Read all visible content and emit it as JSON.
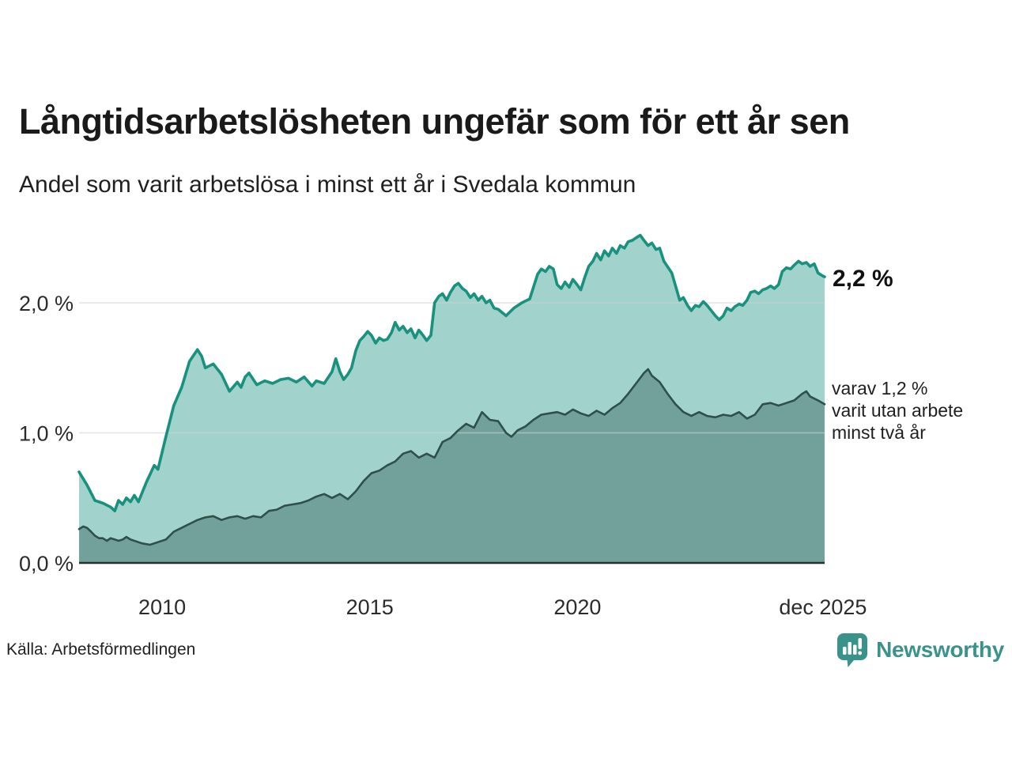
{
  "header": {
    "title": "Långtidsarbetslösheten ungefär som för ett år sen",
    "subtitle": "Andel som varit arbetslösa i minst ett år i Svedala kommun"
  },
  "annotations": {
    "total_end_label": "2,2 %",
    "secondary_line1": "varav 1,2 %",
    "secondary_line2": "varit utan arbete",
    "secondary_line3": "minst två år"
  },
  "footer": {
    "source": "Källa: Arbetsförmedlingen",
    "logo_text": "Newsworthy"
  },
  "colors": {
    "series1_line": "#18917f",
    "series1_fill": "#a1d3cc",
    "series2_line": "#2f4f4a",
    "series2_fill": "#72a09a",
    "gridline": "#d2d2d2",
    "baseline": "#26312e",
    "logo_teal": "#3a938b"
  },
  "chart_data": {
    "type": "area",
    "title": "Långtidsarbetslösheten ungefär som för ett år sen",
    "subtitle": "Andel som varit arbetslösa i minst ett år i Svedala kommun",
    "unit": "%",
    "x_range": [
      2008.0,
      2025.95
    ],
    "ylim": [
      0,
      2.6
    ],
    "grid": true,
    "yticks": [
      {
        "v": 0,
        "label": "0,0 %"
      },
      {
        "v": 1,
        "label": "1,0 %"
      },
      {
        "v": 2,
        "label": "2,0 %"
      }
    ],
    "xticks": [
      {
        "t": 2010,
        "label": "2010"
      },
      {
        "t": 2015,
        "label": "2015"
      },
      {
        "t": 2020,
        "label": "2020"
      },
      {
        "t": 2025.91,
        "label": "dec 2025"
      }
    ],
    "series": [
      {
        "name": "Andel som varit arbetslösa i minst ett år",
        "end_value": "2,2 %",
        "points": [
          [
            2008.0,
            0.7
          ],
          [
            2008.19,
            0.6
          ],
          [
            2008.38,
            0.48
          ],
          [
            2008.57,
            0.46
          ],
          [
            2008.76,
            0.43
          ],
          [
            2008.86,
            0.4
          ],
          [
            2008.95,
            0.48
          ],
          [
            2009.05,
            0.45
          ],
          [
            2009.14,
            0.5
          ],
          [
            2009.24,
            0.47
          ],
          [
            2009.33,
            0.52
          ],
          [
            2009.43,
            0.47
          ],
          [
            2009.62,
            0.62
          ],
          [
            2009.81,
            0.75
          ],
          [
            2009.9,
            0.72
          ],
          [
            2010.09,
            0.97
          ],
          [
            2010.28,
            1.21
          ],
          [
            2010.47,
            1.35
          ],
          [
            2010.66,
            1.55
          ],
          [
            2010.85,
            1.64
          ],
          [
            2010.95,
            1.59
          ],
          [
            2011.04,
            1.5
          ],
          [
            2011.23,
            1.53
          ],
          [
            2011.43,
            1.45
          ],
          [
            2011.62,
            1.32
          ],
          [
            2011.81,
            1.39
          ],
          [
            2011.9,
            1.35
          ],
          [
            2012.0,
            1.43
          ],
          [
            2012.09,
            1.46
          ],
          [
            2012.28,
            1.37
          ],
          [
            2012.47,
            1.4
          ],
          [
            2012.66,
            1.38
          ],
          [
            2012.85,
            1.41
          ],
          [
            2013.04,
            1.42
          ],
          [
            2013.23,
            1.39
          ],
          [
            2013.42,
            1.43
          ],
          [
            2013.61,
            1.36
          ],
          [
            2013.71,
            1.4
          ],
          [
            2013.9,
            1.38
          ],
          [
            2014.09,
            1.47
          ],
          [
            2014.18,
            1.57
          ],
          [
            2014.28,
            1.47
          ],
          [
            2014.37,
            1.41
          ],
          [
            2014.47,
            1.45
          ],
          [
            2014.56,
            1.5
          ],
          [
            2014.66,
            1.63
          ],
          [
            2014.76,
            1.71
          ],
          [
            2014.85,
            1.74
          ],
          [
            2014.95,
            1.78
          ],
          [
            2015.04,
            1.75
          ],
          [
            2015.14,
            1.69
          ],
          [
            2015.23,
            1.73
          ],
          [
            2015.33,
            1.71
          ],
          [
            2015.42,
            1.72
          ],
          [
            2015.52,
            1.77
          ],
          [
            2015.61,
            1.85
          ],
          [
            2015.71,
            1.79
          ],
          [
            2015.8,
            1.82
          ],
          [
            2015.9,
            1.77
          ],
          [
            2015.99,
            1.8
          ],
          [
            2016.09,
            1.73
          ],
          [
            2016.18,
            1.79
          ],
          [
            2016.28,
            1.75
          ],
          [
            2016.37,
            1.71
          ],
          [
            2016.47,
            1.75
          ],
          [
            2016.56,
            2.0
          ],
          [
            2016.66,
            2.05
          ],
          [
            2016.75,
            2.07
          ],
          [
            2016.85,
            2.02
          ],
          [
            2016.94,
            2.08
          ],
          [
            2017.04,
            2.13
          ],
          [
            2017.13,
            2.15
          ],
          [
            2017.23,
            2.11
          ],
          [
            2017.32,
            2.09
          ],
          [
            2017.42,
            2.04
          ],
          [
            2017.51,
            2.07
          ],
          [
            2017.61,
            2.02
          ],
          [
            2017.7,
            2.05
          ],
          [
            2017.8,
            2.0
          ],
          [
            2017.89,
            2.02
          ],
          [
            2017.99,
            1.96
          ],
          [
            2018.09,
            1.95
          ],
          [
            2018.28,
            1.9
          ],
          [
            2018.47,
            1.96
          ],
          [
            2018.66,
            2.0
          ],
          [
            2018.85,
            2.03
          ],
          [
            2019.04,
            2.22
          ],
          [
            2019.13,
            2.26
          ],
          [
            2019.23,
            2.24
          ],
          [
            2019.32,
            2.28
          ],
          [
            2019.42,
            2.26
          ],
          [
            2019.51,
            2.14
          ],
          [
            2019.61,
            2.11
          ],
          [
            2019.7,
            2.16
          ],
          [
            2019.8,
            2.12
          ],
          [
            2019.89,
            2.18
          ],
          [
            2019.99,
            2.14
          ],
          [
            2020.08,
            2.1
          ],
          [
            2020.18,
            2.2
          ],
          [
            2020.27,
            2.28
          ],
          [
            2020.37,
            2.32
          ],
          [
            2020.46,
            2.38
          ],
          [
            2020.56,
            2.33
          ],
          [
            2020.65,
            2.4
          ],
          [
            2020.75,
            2.36
          ],
          [
            2020.84,
            2.42
          ],
          [
            2020.94,
            2.38
          ],
          [
            2021.03,
            2.44
          ],
          [
            2021.13,
            2.42
          ],
          [
            2021.22,
            2.47
          ],
          [
            2021.32,
            2.48
          ],
          [
            2021.41,
            2.5
          ],
          [
            2021.51,
            2.52
          ],
          [
            2021.6,
            2.48
          ],
          [
            2021.7,
            2.44
          ],
          [
            2021.79,
            2.46
          ],
          [
            2021.89,
            2.41
          ],
          [
            2021.98,
            2.42
          ],
          [
            2022.08,
            2.32
          ],
          [
            2022.27,
            2.23
          ],
          [
            2022.46,
            2.02
          ],
          [
            2022.55,
            2.04
          ],
          [
            2022.65,
            1.98
          ],
          [
            2022.74,
            1.94
          ],
          [
            2022.84,
            1.98
          ],
          [
            2022.93,
            1.97
          ],
          [
            2023.03,
            2.01
          ],
          [
            2023.12,
            1.98
          ],
          [
            2023.22,
            1.94
          ],
          [
            2023.32,
            1.9
          ],
          [
            2023.41,
            1.87
          ],
          [
            2023.51,
            1.9
          ],
          [
            2023.6,
            1.96
          ],
          [
            2023.7,
            1.94
          ],
          [
            2023.79,
            1.97
          ],
          [
            2023.89,
            1.99
          ],
          [
            2023.98,
            1.98
          ],
          [
            2024.08,
            2.02
          ],
          [
            2024.17,
            2.08
          ],
          [
            2024.27,
            2.09
          ],
          [
            2024.36,
            2.07
          ],
          [
            2024.46,
            2.1
          ],
          [
            2024.55,
            2.11
          ],
          [
            2024.65,
            2.13
          ],
          [
            2024.74,
            2.11
          ],
          [
            2024.84,
            2.14
          ],
          [
            2024.93,
            2.24
          ],
          [
            2025.03,
            2.27
          ],
          [
            2025.13,
            2.26
          ],
          [
            2025.22,
            2.29
          ],
          [
            2025.32,
            2.32
          ],
          [
            2025.41,
            2.3
          ],
          [
            2025.51,
            2.31
          ],
          [
            2025.6,
            2.28
          ],
          [
            2025.7,
            2.3
          ],
          [
            2025.79,
            2.23
          ],
          [
            2025.89,
            2.21
          ],
          [
            2025.95,
            2.2
          ]
        ]
      },
      {
        "name": "varav utan arbete minst två år",
        "end_value": "1,2 %",
        "points": [
          [
            2008.0,
            0.26
          ],
          [
            2008.1,
            0.28
          ],
          [
            2008.19,
            0.27
          ],
          [
            2008.29,
            0.24
          ],
          [
            2008.38,
            0.21
          ],
          [
            2008.48,
            0.19
          ],
          [
            2008.57,
            0.19
          ],
          [
            2008.67,
            0.17
          ],
          [
            2008.76,
            0.19
          ],
          [
            2008.86,
            0.18
          ],
          [
            2008.95,
            0.17
          ],
          [
            2009.05,
            0.18
          ],
          [
            2009.14,
            0.2
          ],
          [
            2009.24,
            0.18
          ],
          [
            2009.33,
            0.17
          ],
          [
            2009.52,
            0.15
          ],
          [
            2009.71,
            0.14
          ],
          [
            2009.9,
            0.16
          ],
          [
            2010.09,
            0.18
          ],
          [
            2010.28,
            0.24
          ],
          [
            2010.47,
            0.27
          ],
          [
            2010.66,
            0.3
          ],
          [
            2010.85,
            0.33
          ],
          [
            2011.04,
            0.35
          ],
          [
            2011.23,
            0.36
          ],
          [
            2011.43,
            0.33
          ],
          [
            2011.62,
            0.35
          ],
          [
            2011.81,
            0.36
          ],
          [
            2012.0,
            0.34
          ],
          [
            2012.19,
            0.36
          ],
          [
            2012.38,
            0.35
          ],
          [
            2012.57,
            0.4
          ],
          [
            2012.76,
            0.41
          ],
          [
            2012.95,
            0.44
          ],
          [
            2013.14,
            0.45
          ],
          [
            2013.33,
            0.46
          ],
          [
            2013.52,
            0.48
          ],
          [
            2013.71,
            0.51
          ],
          [
            2013.9,
            0.53
          ],
          [
            2014.09,
            0.5
          ],
          [
            2014.28,
            0.53
          ],
          [
            2014.47,
            0.49
          ],
          [
            2014.66,
            0.55
          ],
          [
            2014.85,
            0.63
          ],
          [
            2015.04,
            0.69
          ],
          [
            2015.23,
            0.71
          ],
          [
            2015.42,
            0.75
          ],
          [
            2015.61,
            0.78
          ],
          [
            2015.8,
            0.84
          ],
          [
            2015.99,
            0.86
          ],
          [
            2016.18,
            0.81
          ],
          [
            2016.37,
            0.84
          ],
          [
            2016.56,
            0.81
          ],
          [
            2016.75,
            0.93
          ],
          [
            2016.94,
            0.96
          ],
          [
            2017.13,
            1.02
          ],
          [
            2017.32,
            1.07
          ],
          [
            2017.51,
            1.04
          ],
          [
            2017.7,
            1.16
          ],
          [
            2017.89,
            1.1
          ],
          [
            2018.09,
            1.09
          ],
          [
            2018.28,
            1.0
          ],
          [
            2018.41,
            0.97
          ],
          [
            2018.56,
            1.02
          ],
          [
            2018.75,
            1.05
          ],
          [
            2018.94,
            1.1
          ],
          [
            2019.13,
            1.14
          ],
          [
            2019.32,
            1.15
          ],
          [
            2019.51,
            1.16
          ],
          [
            2019.7,
            1.14
          ],
          [
            2019.89,
            1.18
          ],
          [
            2020.08,
            1.15
          ],
          [
            2020.27,
            1.13
          ],
          [
            2020.46,
            1.17
          ],
          [
            2020.65,
            1.14
          ],
          [
            2020.84,
            1.19
          ],
          [
            2021.03,
            1.23
          ],
          [
            2021.22,
            1.3
          ],
          [
            2021.41,
            1.38
          ],
          [
            2021.6,
            1.46
          ],
          [
            2021.7,
            1.49
          ],
          [
            2021.79,
            1.44
          ],
          [
            2021.98,
            1.39
          ],
          [
            2022.17,
            1.3
          ],
          [
            2022.36,
            1.22
          ],
          [
            2022.55,
            1.16
          ],
          [
            2022.74,
            1.13
          ],
          [
            2022.93,
            1.16
          ],
          [
            2023.12,
            1.13
          ],
          [
            2023.32,
            1.12
          ],
          [
            2023.51,
            1.14
          ],
          [
            2023.7,
            1.13
          ],
          [
            2023.89,
            1.16
          ],
          [
            2024.08,
            1.11
          ],
          [
            2024.27,
            1.14
          ],
          [
            2024.46,
            1.22
          ],
          [
            2024.65,
            1.23
          ],
          [
            2024.84,
            1.21
          ],
          [
            2025.03,
            1.23
          ],
          [
            2025.22,
            1.25
          ],
          [
            2025.41,
            1.3
          ],
          [
            2025.51,
            1.32
          ],
          [
            2025.6,
            1.28
          ],
          [
            2025.79,
            1.25
          ],
          [
            2025.95,
            1.22
          ]
        ]
      }
    ],
    "legend_position": "right-annotations"
  }
}
